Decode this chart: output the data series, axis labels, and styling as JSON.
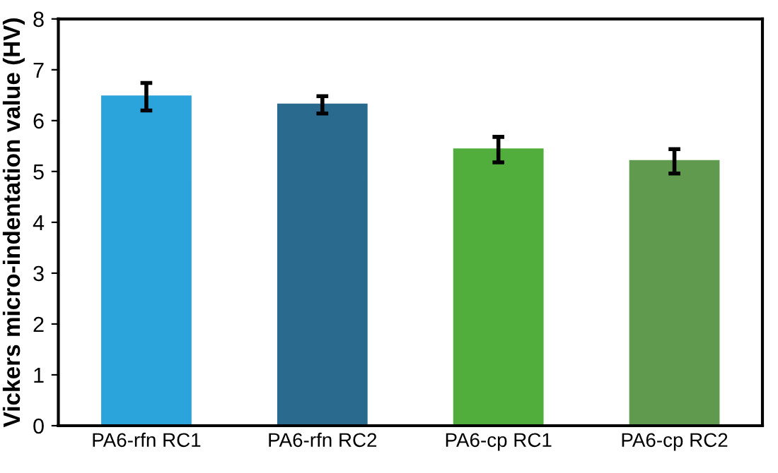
{
  "chart_data": {
    "type": "bar",
    "ylabel": "Vickers micro-indentation value (HV)",
    "categories": [
      "PA6-rfn RC1",
      "PA6-rfn RC2",
      "PA6-cp RC1",
      "PA6-cp RC2"
    ],
    "values": [
      6.47,
      6.31,
      5.43,
      5.2
    ],
    "errors": [
      0.27,
      0.17,
      0.25,
      0.24
    ],
    "colors": [
      "#2ba4dc",
      "#2a6a8e",
      "#52ae3c",
      "#5f9a4e"
    ],
    "ylim": [
      0,
      8
    ],
    "yticks": [
      0,
      1,
      2,
      3,
      4,
      5,
      6,
      7,
      8
    ],
    "grid": false
  }
}
